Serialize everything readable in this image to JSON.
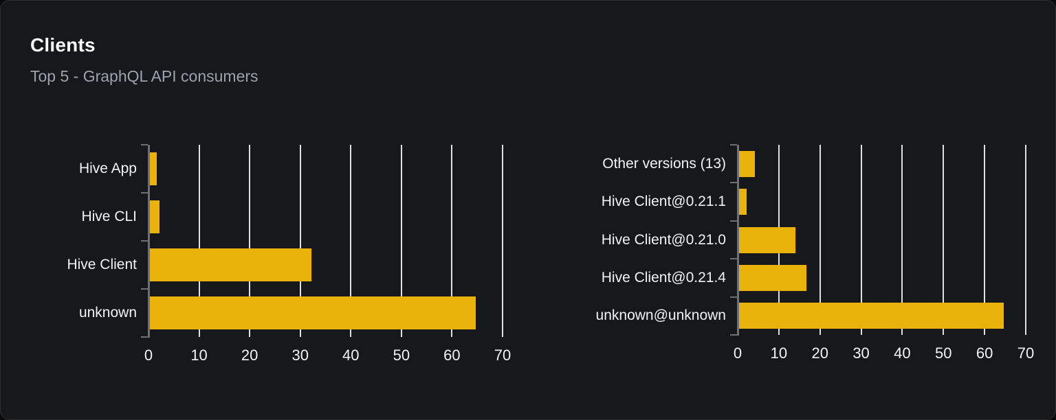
{
  "card": {
    "title": "Clients",
    "subtitle": "Top 5 - GraphQL API consumers"
  },
  "colors": {
    "bar": "#e9b30b",
    "card_background": "#16181c",
    "page_background": "#0a0a0c",
    "card_border": "#2e3034",
    "gridline": "#dce0e8",
    "axis": "#6e7076",
    "title_text": "#fafafa",
    "subtitle_text": "#9ca3af",
    "tick_text": "#f2f3f5"
  },
  "chart_data": [
    {
      "type": "bar",
      "orientation": "horizontal",
      "categories": [
        "Hive App",
        "Hive CLI",
        "Hive Client",
        "unknown"
      ],
      "values": [
        1.3,
        1.9,
        32,
        64.4
      ],
      "xlim": [
        0,
        70
      ],
      "xticks": [
        0,
        10,
        20,
        30,
        40,
        50,
        60,
        70
      ],
      "grid": true,
      "legend": false,
      "bar_color": "#e9b30b"
    },
    {
      "type": "bar",
      "orientation": "horizontal",
      "categories": [
        "Other versions (13)",
        "Hive Client@0.21.1",
        "Hive Client@0.21.0",
        "Hive Client@0.21.4",
        "unknown@unknown"
      ],
      "values": [
        3.9,
        1.8,
        13.7,
        16.4,
        64.4
      ],
      "xlim": [
        0,
        70
      ],
      "xticks": [
        0,
        10,
        20,
        30,
        40,
        50,
        60,
        70
      ],
      "grid": true,
      "legend": false,
      "bar_color": "#e9b30b"
    }
  ]
}
